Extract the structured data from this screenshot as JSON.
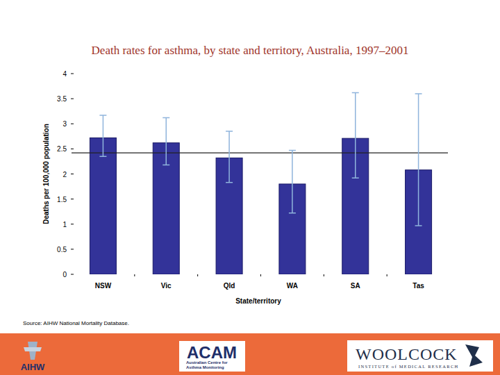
{
  "chart_data": {
    "type": "bar",
    "title": "Death rates for asthma, by state and territory, Australia, 1997–2001",
    "x_label": "State/territory",
    "y_label": "Deaths per 100,000 population",
    "categories": [
      "NSW",
      "Vic",
      "Qld",
      "WA",
      "SA",
      "Tas"
    ],
    "values": [
      2.72,
      2.62,
      2.32,
      1.8,
      2.71,
      2.08
    ],
    "ci_low": [
      2.35,
      2.18,
      1.83,
      1.22,
      1.92,
      0.97
    ],
    "ci_high": [
      3.17,
      3.12,
      2.85,
      2.47,
      3.62,
      3.6
    ],
    "average": 2.42,
    "color": "#333399",
    "ylim": [
      0,
      4
    ],
    "yticks": [
      0,
      0.5,
      1,
      1.5,
      2,
      2.5,
      3,
      3.5,
      4
    ],
    "grid": false,
    "source": "Source: AIHW National Mortality Database."
  },
  "footer": {
    "left": "AIHW",
    "middle": "ACAM",
    "middle_lines": [
      "Australian Centre for",
      "Asthma Monitoring"
    ],
    "right": "WOOLCOCK",
    "right_sub": "INSTITUTE of MEDICAL RESEARCH"
  }
}
